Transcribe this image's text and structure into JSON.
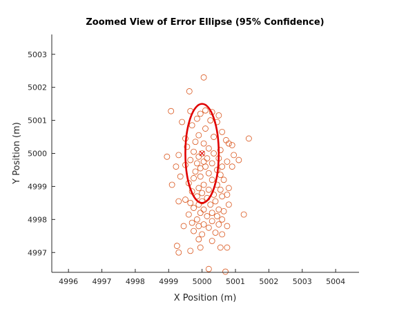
{
  "chart_data": {
    "type": "scatter",
    "title": "Zoomed View of Error Ellipse (95% Confidence)",
    "xlabel": "X Position (m)",
    "ylabel": "Y Position (m)",
    "xlim": [
      4995.5,
      5004.7
    ],
    "ylim": [
      4996.4,
      5003.6
    ],
    "xticks": [
      4996,
      4997,
      4998,
      4999,
      5000,
      5001,
      5002,
      5003,
      5004
    ],
    "yticks": [
      4997,
      4998,
      4999,
      5000,
      5001,
      5002,
      5003
    ],
    "grid": false,
    "box": "top-right open",
    "colors": {
      "points": "#D95319",
      "ellipse": "#E00000",
      "center_marker": "#E00000",
      "axes": "#262626"
    },
    "center": [
      5000.0,
      5000.0
    ],
    "ellipse": {
      "center": [
        5000.0,
        5000.0
      ],
      "semi_axis_x": 0.5,
      "semi_axis_y": 1.5,
      "rotation_deg": 0,
      "confidence": "95%"
    },
    "points": [
      [
        5000.05,
        5002.3
      ],
      [
        4999.62,
        5001.88
      ],
      [
        4999.07,
        5001.28
      ],
      [
        4999.65,
        5001.28
      ],
      [
        4999.95,
        5001.2
      ],
      [
        5000.1,
        5001.3
      ],
      [
        5000.3,
        5001.25
      ],
      [
        5000.5,
        5001.15
      ],
      [
        4999.85,
        5001.05
      ],
      [
        5000.25,
        5001.0
      ],
      [
        5000.45,
        5000.95
      ],
      [
        4999.4,
        5000.95
      ],
      [
        4999.7,
        5000.85
      ],
      [
        5000.1,
        5000.75
      ],
      [
        5000.6,
        5000.65
      ],
      [
        4999.9,
        5000.55
      ],
      [
        5000.35,
        5000.5
      ],
      [
        4999.5,
        5000.45
      ],
      [
        5000.72,
        5000.4
      ],
      [
        4999.8,
        5000.35
      ],
      [
        5000.05,
        5000.3
      ],
      [
        5000.8,
        5000.3
      ],
      [
        5000.9,
        5000.25
      ],
      [
        5001.4,
        5000.45
      ],
      [
        4999.55,
        5000.2
      ],
      [
        5000.2,
        5000.15
      ],
      [
        5000.55,
        5000.1
      ],
      [
        4999.75,
        5000.05
      ],
      [
        5000.0,
        5000.0
      ],
      [
        5000.35,
        5000.0
      ],
      [
        4999.3,
        4999.95
      ],
      [
        4998.95,
        4999.9
      ],
      [
        4999.9,
        4999.9
      ],
      [
        5000.15,
        4999.85
      ],
      [
        5000.5,
        4999.85
      ],
      [
        5000.95,
        4999.95
      ],
      [
        5001.1,
        4999.8
      ],
      [
        4999.65,
        4999.8
      ],
      [
        5000.05,
        4999.75
      ],
      [
        5000.75,
        4999.75
      ],
      [
        4999.85,
        4999.7
      ],
      [
        5000.3,
        4999.7
      ],
      [
        4999.5,
        4999.65
      ],
      [
        4999.22,
        4999.6
      ],
      [
        5000.1,
        4999.6
      ],
      [
        5000.6,
        4999.6
      ],
      [
        4999.95,
        4999.55
      ],
      [
        5000.45,
        4999.5
      ],
      [
        5000.9,
        4999.6
      ],
      [
        4999.8,
        4999.45
      ],
      [
        5000.2,
        4999.4
      ],
      [
        5000.55,
        4999.35
      ],
      [
        4999.35,
        4999.3
      ],
      [
        4999.95,
        4999.3
      ],
      [
        4999.75,
        4999.25
      ],
      [
        5000.3,
        4999.2
      ],
      [
        5000.65,
        4999.2
      ],
      [
        4999.1,
        4999.05
      ],
      [
        4999.6,
        4999.1
      ],
      [
        5000.05,
        4999.05
      ],
      [
        5000.45,
        4999.05
      ],
      [
        4999.9,
        4998.95
      ],
      [
        5000.2,
        4998.9
      ],
      [
        5000.55,
        4998.9
      ],
      [
        5000.8,
        4998.95
      ],
      [
        4999.7,
        4998.85
      ],
      [
        5000.0,
        4998.8
      ],
      [
        5000.35,
        4998.75
      ],
      [
        4999.85,
        4998.7
      ],
      [
        5000.15,
        4998.65
      ],
      [
        5000.6,
        4998.7
      ],
      [
        5000.75,
        4998.75
      ],
      [
        4999.5,
        4998.6
      ],
      [
        5000.0,
        4998.55
      ],
      [
        5000.4,
        4998.55
      ],
      [
        4999.3,
        4998.55
      ],
      [
        4999.9,
        4998.45
      ],
      [
        5000.25,
        4998.45
      ],
      [
        4999.65,
        4998.5
      ],
      [
        5000.8,
        4998.45
      ],
      [
        4999.75,
        4998.35
      ],
      [
        5000.05,
        4998.3
      ],
      [
        5000.5,
        4998.3
      ],
      [
        4999.95,
        4998.2
      ],
      [
        5000.3,
        4998.2
      ],
      [
        5000.65,
        4998.25
      ],
      [
        4999.6,
        4998.15
      ],
      [
        5000.15,
        4998.1
      ],
      [
        5000.45,
        4998.1
      ],
      [
        5001.25,
        4998.15
      ],
      [
        4999.85,
        4998.0
      ],
      [
        5000.6,
        4998.0
      ],
      [
        5000.3,
        4997.95
      ],
      [
        4999.7,
        4997.9
      ],
      [
        5000.05,
        4997.85
      ],
      [
        5000.5,
        4997.85
      ],
      [
        4999.45,
        4997.8
      ],
      [
        4999.9,
        4997.8
      ],
      [
        5000.75,
        4997.8
      ],
      [
        5000.2,
        4997.75
      ],
      [
        4999.75,
        4997.65
      ],
      [
        5000.4,
        4997.6
      ],
      [
        5000.0,
        4997.55
      ],
      [
        5000.6,
        4997.55
      ],
      [
        4999.9,
        4997.4
      ],
      [
        5000.3,
        4997.35
      ],
      [
        4999.25,
        4997.2
      ],
      [
        5000.55,
        4997.15
      ],
      [
        5000.75,
        4997.15
      ],
      [
        4999.95,
        4997.15
      ],
      [
        4999.65,
        4997.05
      ],
      [
        4999.3,
        4997.0
      ],
      [
        5000.2,
        4996.5
      ],
      [
        5000.7,
        4996.42
      ]
    ]
  }
}
